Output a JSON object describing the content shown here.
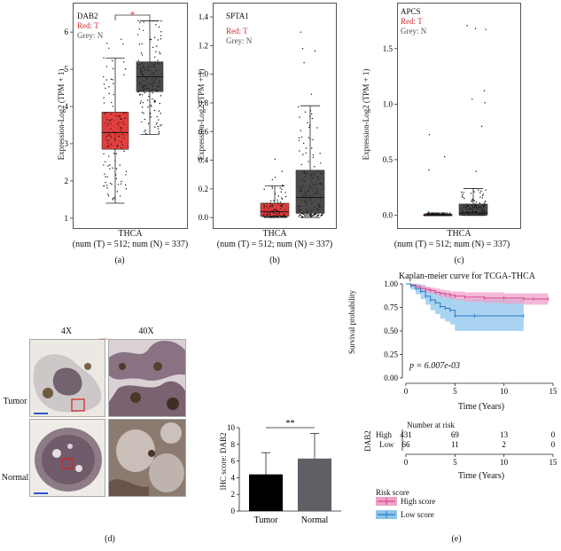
{
  "panels": {
    "a": {
      "label": "(a)"
    },
    "b": {
      "label": "(b)"
    },
    "c": {
      "label": "(c)"
    },
    "d": {
      "label": "(d)"
    },
    "e": {
      "label": "(e)"
    }
  },
  "colors": {
    "tumor": "#e0302f",
    "normal": "#3c3c3c",
    "high": "#d9488f",
    "low": "#2a7bc4",
    "high_ci": "#efa2c8",
    "low_ci": "#8ec4ec"
  },
  "chart_data": [
    {
      "id": "a",
      "type": "box",
      "gene": "DAB2",
      "legend_tumor": "Red: T",
      "legend_normal": "Grey: N",
      "ylabel": "Expression-Log2 (TPM + 1)",
      "ylim": [
        0.9,
        6.6
      ],
      "yticks": [
        "1",
        "2",
        "3",
        "4",
        "5",
        "6"
      ],
      "ytick_values": [
        1,
        2,
        3,
        4,
        5,
        6
      ],
      "xlabel": "THCA",
      "sublabel": "(num (T) = 512; num (N) = 337)",
      "significance": "*",
      "boxes": [
        {
          "group": "T",
          "whisker_low": 1.4,
          "q1": 2.85,
          "median": 3.3,
          "q3": 3.85,
          "whisker_high": 5.3,
          "min": 1.05,
          "max": 5.9
        },
        {
          "group": "N",
          "whisker_low": 3.25,
          "q1": 4.4,
          "median": 4.8,
          "q3": 5.2,
          "whisker_high": 6.3,
          "min": 2.6,
          "max": 6.3
        }
      ]
    },
    {
      "id": "b",
      "type": "box",
      "gene": "SPTA1",
      "legend_tumor": "Red: T",
      "legend_normal": "Grey: N",
      "ylabel": "Expression-Log2 (TPM + 1)",
      "ylim": [
        -0.03,
        1.45
      ],
      "yticks": [
        "0.0",
        "0.2",
        "0.4",
        "0.6",
        "0.8",
        "1.0",
        "1.2",
        "1.4"
      ],
      "ytick_values": [
        0,
        0.2,
        0.4,
        0.6,
        0.8,
        1.0,
        1.2,
        1.4
      ],
      "xlabel": "THCA",
      "sublabel": "(num (T) = 512; num (N) = 337)",
      "boxes": [
        {
          "group": "T",
          "whisker_low": 0.0,
          "q1": 0.01,
          "median": 0.04,
          "q3": 0.1,
          "whisker_high": 0.22,
          "min": 0.0,
          "max": 0.42
        },
        {
          "group": "N",
          "whisker_low": 0.0,
          "q1": 0.03,
          "median": 0.14,
          "q3": 0.33,
          "whisker_high": 0.78,
          "min": 0.0,
          "max": 1.32
        }
      ]
    },
    {
      "id": "c",
      "type": "box",
      "gene": "APCS",
      "legend_tumor": "Red: T",
      "legend_normal": "Grey: N",
      "ylabel": "Expression-Log2 (TPM + 1)",
      "ylim": [
        -0.06,
        1.85
      ],
      "yticks": [
        "0.0",
        "0.5",
        "1.0",
        "1.5"
      ],
      "ytick_values": [
        0,
        0.5,
        1.0,
        1.5
      ],
      "xlabel": "THCA",
      "sublabel": "(num (T) = 512; num (N) = 337)",
      "boxes": [
        {
          "group": "T",
          "whisker_low": 0.0,
          "q1": 0.0,
          "median": 0.0,
          "q3": 0.01,
          "whisker_high": 0.02,
          "min": 0.0,
          "max": 0.77
        },
        {
          "group": "N",
          "whisker_low": 0.0,
          "q1": 0.0,
          "median": 0.02,
          "q3": 0.1,
          "whisker_high": 0.24,
          "min": 0.0,
          "max": 1.76
        }
      ]
    },
    {
      "id": "d_bar",
      "type": "bar",
      "categories": [
        "Tumor",
        "Normal"
      ],
      "values": [
        4.4,
        6.3
      ],
      "errors": [
        2.6,
        3.0
      ],
      "ylabel": "IHC score: DAB2",
      "ylim": [
        0,
        10
      ],
      "yticks": [
        "0",
        "2",
        "4",
        "6",
        "8",
        "10"
      ],
      "ytick_values": [
        0,
        2,
        4,
        6,
        8,
        10
      ],
      "significance": "**",
      "colors": [
        "#000000",
        "#5f5f66"
      ]
    },
    {
      "id": "e",
      "type": "line",
      "title": "Kaplan-meier curve for TCGA-THCA",
      "xlabel": "Time (Years)",
      "ylabel": "Survival probability",
      "xlim": [
        0,
        15
      ],
      "ylim": [
        0,
        1
      ],
      "xticks": [
        "0",
        "5",
        "10",
        "15"
      ],
      "xtick_values": [
        0,
        5,
        10,
        15
      ],
      "yticks": [
        "0.00",
        "0.25",
        "0.50",
        "0.75",
        "1.00"
      ],
      "ytick_values": [
        0,
        0.25,
        0.5,
        0.75,
        1.0
      ],
      "pvalue": "p = 6.007e-03",
      "legend_title": "Risk score",
      "series": [
        {
          "name": "High score",
          "x": [
            0,
            0.5,
            1,
            1.5,
            2,
            2.5,
            3,
            3.5,
            4,
            4.5,
            5,
            6,
            8,
            10,
            12,
            13,
            14.5
          ],
          "y": [
            1.0,
            0.99,
            0.97,
            0.95,
            0.94,
            0.93,
            0.91,
            0.9,
            0.89,
            0.88,
            0.87,
            0.86,
            0.85,
            0.85,
            0.84,
            0.84,
            0.84
          ],
          "ci_low": [
            1.0,
            0.98,
            0.95,
            0.93,
            0.91,
            0.9,
            0.88,
            0.86,
            0.85,
            0.84,
            0.83,
            0.81,
            0.8,
            0.79,
            0.78,
            0.78,
            0.78
          ],
          "ci_high": [
            1.0,
            1.0,
            0.99,
            0.98,
            0.97,
            0.96,
            0.95,
            0.94,
            0.93,
            0.92,
            0.92,
            0.91,
            0.91,
            0.9,
            0.9,
            0.9,
            0.9
          ]
        },
        {
          "name": "Low score",
          "x": [
            0,
            0.5,
            1,
            1.5,
            2,
            2.5,
            3,
            3.5,
            4,
            4.5,
            5,
            7,
            12
          ],
          "y": [
            1.0,
            0.98,
            0.95,
            0.92,
            0.87,
            0.83,
            0.8,
            0.76,
            0.74,
            0.72,
            0.66,
            0.66,
            0.66
          ],
          "ci_low": [
            1.0,
            0.94,
            0.89,
            0.84,
            0.78,
            0.72,
            0.68,
            0.63,
            0.6,
            0.57,
            0.5,
            0.5,
            0.5
          ],
          "ci_high": [
            1.0,
            1.0,
            1.0,
            0.99,
            0.96,
            0.93,
            0.91,
            0.89,
            0.88,
            0.87,
            0.84,
            0.84,
            0.84
          ]
        }
      ],
      "risk_table": {
        "title": "Number at risk",
        "ylabel": "DAB2",
        "rows": [
          {
            "label": "High",
            "values": [
              "431",
              "69",
              "13",
              "0"
            ]
          },
          {
            "label": "Low",
            "values": [
              "66",
              "11",
              "2",
              "0"
            ]
          }
        ],
        "xticks": [
          "0",
          "5",
          "10",
          "15"
        ],
        "xlabel": "Time (Years)"
      }
    }
  ],
  "ihc": {
    "col_4x": "4X",
    "col_40x": "40X",
    "row_tumor": "Tumor",
    "row_normal": "Normal"
  }
}
